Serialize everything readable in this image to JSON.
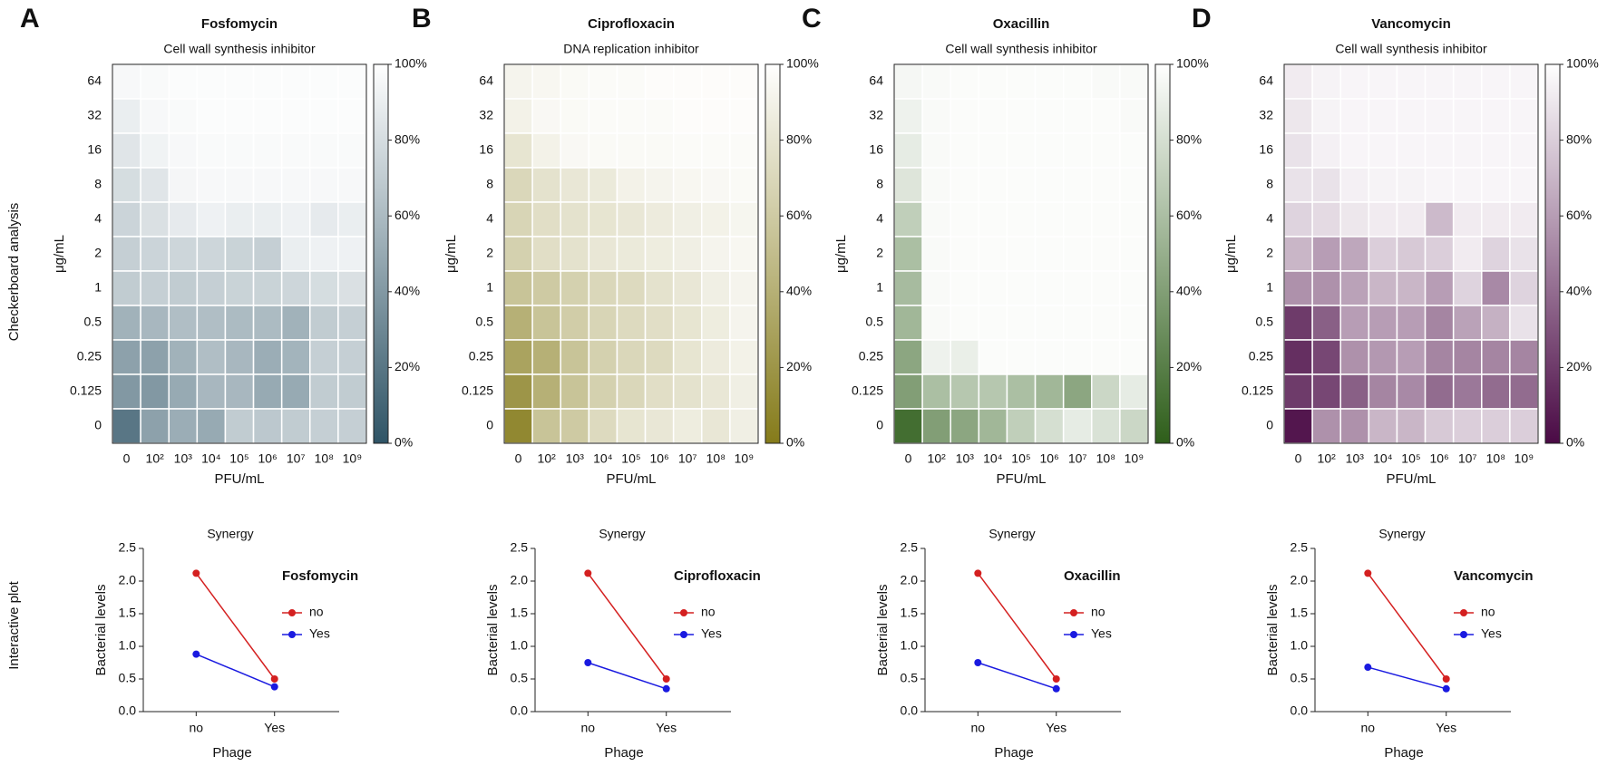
{
  "row_labels": [
    "Checkerboard analysis",
    "Interactive plot"
  ],
  "chart_data": [
    {
      "type": "heatmap",
      "panel": "A",
      "title": "Fosfomycin",
      "subtitle": "Cell wall synthesis inhibitor",
      "x_label": "PFU/mL",
      "y_label": "μg/mL",
      "x_categories": [
        "0",
        "10²",
        "10³",
        "10⁴",
        "10⁵",
        "10⁶",
        "10⁷",
        "10⁸",
        "10⁹"
      ],
      "y_categories": [
        "64",
        "32",
        "16",
        "8",
        "4",
        "2",
        "1",
        "0.5",
        "0.25",
        "0.125",
        "0"
      ],
      "values": [
        [
          96,
          97,
          98,
          98,
          98,
          98,
          98,
          98,
          98
        ],
        [
          90,
          96,
          97,
          98,
          98,
          98,
          98,
          98,
          98
        ],
        [
          85,
          93,
          96,
          97,
          97,
          97,
          97,
          97,
          97
        ],
        [
          80,
          85,
          95,
          96,
          96,
          96,
          96,
          96,
          96
        ],
        [
          75,
          82,
          88,
          92,
          90,
          90,
          92,
          88,
          90
        ],
        [
          72,
          75,
          76,
          76,
          74,
          72,
          90,
          92,
          92
        ],
        [
          70,
          72,
          70,
          72,
          74,
          74,
          76,
          80,
          82
        ],
        [
          55,
          58,
          62,
          62,
          60,
          60,
          55,
          70,
          72
        ],
        [
          45,
          45,
          55,
          62,
          58,
          52,
          56,
          72,
          72
        ],
        [
          40,
          40,
          50,
          58,
          58,
          50,
          50,
          70,
          70
        ],
        [
          20,
          45,
          52,
          50,
          70,
          68,
          70,
          72,
          72
        ]
      ],
      "color_low": "#2f5466",
      "color_high": "#ffffff",
      "zlim": [
        0,
        100
      ],
      "zticks": [
        {
          "value": 0,
          "label": "0%"
        },
        {
          "value": 20,
          "label": "20%"
        },
        {
          "value": 40,
          "label": "40%"
        },
        {
          "value": 60,
          "label": "60%"
        },
        {
          "value": 80,
          "label": "80%"
        },
        {
          "value": 100,
          "label": "100%"
        }
      ]
    },
    {
      "type": "heatmap",
      "panel": "B",
      "title": "Ciprofloxacin",
      "subtitle": "DNA replication inhibitor",
      "x_label": "PFU/mL",
      "y_label": "μg/mL",
      "x_categories": [
        "0",
        "10²",
        "10³",
        "10⁴",
        "10⁵",
        "10⁶",
        "10⁷",
        "10⁸",
        "10⁹"
      ],
      "y_categories": [
        "64",
        "32",
        "16",
        "8",
        "4",
        "2",
        "1",
        "0.5",
        "0.25",
        "0.125",
        "0"
      ],
      "values": [
        [
          92,
          94,
          96,
          97,
          97,
          98,
          98,
          98,
          98
        ],
        [
          90,
          95,
          96,
          97,
          97,
          97,
          98,
          98,
          98
        ],
        [
          80,
          90,
          95,
          96,
          96,
          96,
          97,
          97,
          97
        ],
        [
          70,
          78,
          82,
          84,
          90,
          92,
          94,
          95,
          96
        ],
        [
          68,
          75,
          78,
          80,
          82,
          85,
          88,
          90,
          93
        ],
        [
          65,
          75,
          78,
          82,
          84,
          86,
          88,
          92,
          94
        ],
        [
          55,
          60,
          65,
          70,
          72,
          78,
          82,
          88,
          92
        ],
        [
          40,
          55,
          62,
          68,
          72,
          75,
          80,
          86,
          92
        ],
        [
          30,
          40,
          55,
          65,
          70,
          72,
          80,
          85,
          90
        ],
        [
          20,
          40,
          55,
          65,
          70,
          75,
          78,
          82,
          88
        ],
        [
          10,
          55,
          60,
          72,
          80,
          82,
          86,
          82,
          88
        ]
      ],
      "color_low": "#857b1a",
      "color_high": "#ffffff",
      "zlim": [
        0,
        100
      ],
      "zticks": [
        {
          "value": 0,
          "label": "0%"
        },
        {
          "value": 20,
          "label": "20%"
        },
        {
          "value": 40,
          "label": "40%"
        },
        {
          "value": 60,
          "label": "60%"
        },
        {
          "value": 80,
          "label": "80%"
        },
        {
          "value": 100,
          "label": "100%"
        }
      ]
    },
    {
      "type": "heatmap",
      "panel": "C",
      "title": "Oxacillin",
      "subtitle": "Cell wall synthesis inhibitor",
      "x_label": "PFU/mL",
      "y_label": "μg/mL",
      "x_categories": [
        "0",
        "10²",
        "10³",
        "10⁴",
        "10⁵",
        "10⁶",
        "10⁷",
        "10⁸",
        "10⁹"
      ],
      "y_categories": [
        "64",
        "32",
        "16",
        "8",
        "4",
        "2",
        "1",
        "0.5",
        "0.25",
        "0.125",
        "0"
      ],
      "values": [
        [
          95,
          97,
          98,
          98,
          98,
          98,
          98,
          97,
          97
        ],
        [
          92,
          97,
          98,
          98,
          98,
          98,
          98,
          98,
          97
        ],
        [
          88,
          97,
          98,
          98,
          98,
          98,
          98,
          98,
          98
        ],
        [
          84,
          97,
          98,
          98,
          98,
          98,
          98,
          98,
          98
        ],
        [
          70,
          97,
          98,
          98,
          98,
          98,
          98,
          98,
          98
        ],
        [
          60,
          97,
          98,
          98,
          98,
          98,
          98,
          98,
          98
        ],
        [
          58,
          97,
          98,
          98,
          98,
          98,
          98,
          98,
          98
        ],
        [
          55,
          97,
          98,
          98,
          98,
          98,
          98,
          98,
          98
        ],
        [
          45,
          92,
          90,
          98,
          98,
          98,
          98,
          98,
          98
        ],
        [
          40,
          60,
          65,
          65,
          60,
          55,
          45,
          75,
          88
        ],
        [
          10,
          40,
          45,
          55,
          70,
          80,
          88,
          82,
          75
        ]
      ],
      "color_low": "#2e5e1a",
      "color_high": "#ffffff",
      "zlim": [
        0,
        100
      ],
      "zticks": [
        {
          "value": 0,
          "label": "0%"
        },
        {
          "value": 20,
          "label": "20%"
        },
        {
          "value": 40,
          "label": "40%"
        },
        {
          "value": 60,
          "label": "60%"
        },
        {
          "value": 80,
          "label": "80%"
        },
        {
          "value": 100,
          "label": "100%"
        }
      ]
    },
    {
      "type": "heatmap",
      "panel": "D",
      "title": "Vancomycin",
      "subtitle": "Cell wall synthesis inhibitor",
      "x_label": "PFU/mL",
      "y_label": "μg/mL",
      "x_categories": [
        "0",
        "10²",
        "10³",
        "10⁴",
        "10⁵",
        "10⁶",
        "10⁷",
        "10⁸",
        "10⁹"
      ],
      "y_categories": [
        "64",
        "32",
        "16",
        "8",
        "4",
        "2",
        "1",
        "0.5",
        "0.25",
        "0.125",
        "0"
      ],
      "values": [
        [
          92,
          95,
          96,
          96,
          96,
          96,
          96,
          96,
          96
        ],
        [
          90,
          95,
          96,
          96,
          96,
          96,
          96,
          96,
          96
        ],
        [
          88,
          94,
          96,
          96,
          96,
          96,
          96,
          96,
          96
        ],
        [
          88,
          88,
          94,
          95,
          95,
          96,
          96,
          96,
          96
        ],
        [
          82,
          85,
          90,
          92,
          92,
          72,
          92,
          92,
          92
        ],
        [
          70,
          60,
          64,
          80,
          78,
          80,
          92,
          82,
          88
        ],
        [
          55,
          55,
          62,
          70,
          70,
          60,
          82,
          52,
          82
        ],
        [
          20,
          35,
          60,
          60,
          60,
          50,
          62,
          68,
          88
        ],
        [
          15,
          25,
          55,
          58,
          60,
          50,
          50,
          50,
          50
        ],
        [
          20,
          25,
          35,
          50,
          52,
          40,
          45,
          40,
          40
        ],
        [
          5,
          55,
          55,
          70,
          70,
          78,
          80,
          80,
          80
        ]
      ],
      "color_low": "#4a0a45",
      "color_high": "#ffffff",
      "zlim": [
        0,
        100
      ],
      "zticks": [
        {
          "value": 0,
          "label": "0%"
        },
        {
          "value": 20,
          "label": "20%"
        },
        {
          "value": 40,
          "label": "40%"
        },
        {
          "value": 60,
          "label": "60%"
        },
        {
          "value": 80,
          "label": "80%"
        },
        {
          "value": 100,
          "label": "100%"
        }
      ]
    },
    {
      "type": "line",
      "title": "Synergy",
      "legend_title": "Fosfomycin",
      "categories": [
        "no",
        "Yes"
      ],
      "x_label": "Phage",
      "y_label": "Bacterial levels",
      "ylim": [
        0,
        2.5
      ],
      "yticks": [
        {
          "value": 0,
          "label": "0.0"
        },
        0.5,
        {
          "value": 1,
          "label": "1.0"
        },
        1.5,
        {
          "value": 2,
          "label": "2.0"
        },
        2.5
      ],
      "series": [
        {
          "name": "no",
          "color": "#d42020",
          "values": [
            2.12,
            0.5
          ]
        },
        {
          "name": "Yes",
          "color": "#1a1ae0",
          "values": [
            0.88,
            0.38
          ]
        }
      ]
    },
    {
      "type": "line",
      "title": "Synergy",
      "legend_title": "Ciprofloxacin",
      "categories": [
        "no",
        "Yes"
      ],
      "x_label": "Phage",
      "y_label": "Bacterial levels",
      "ylim": [
        0,
        2.5
      ],
      "yticks": [
        {
          "value": 0,
          "label": "0.0"
        },
        0.5,
        {
          "value": 1,
          "label": "1.0"
        },
        1.5,
        {
          "value": 2,
          "label": "2.0"
        },
        2.5
      ],
      "series": [
        {
          "name": "no",
          "color": "#d42020",
          "values": [
            2.12,
            0.5
          ]
        },
        {
          "name": "Yes",
          "color": "#1a1ae0",
          "values": [
            0.75,
            0.35
          ]
        }
      ]
    },
    {
      "type": "line",
      "title": "Synergy",
      "legend_title": "Oxacillin",
      "categories": [
        "no",
        "Yes"
      ],
      "x_label": "Phage",
      "y_label": "Bacterial levels",
      "ylim": [
        0,
        2.5
      ],
      "yticks": [
        {
          "value": 0,
          "label": "0.0"
        },
        0.5,
        {
          "value": 1,
          "label": "1.0"
        },
        1.5,
        {
          "value": 2,
          "label": "2.0"
        },
        2.5
      ],
      "series": [
        {
          "name": "no",
          "color": "#d42020",
          "values": [
            2.12,
            0.5
          ]
        },
        {
          "name": "Yes",
          "color": "#1a1ae0",
          "values": [
            0.75,
            0.35
          ]
        }
      ]
    },
    {
      "type": "line",
      "title": "Synergy",
      "legend_title": "Vancomycin",
      "categories": [
        "no",
        "Yes"
      ],
      "x_label": "Phage",
      "y_label": "Bacterial levels",
      "ylim": [
        0,
        2.5
      ],
      "yticks": [
        {
          "value": 0,
          "label": "0.0"
        },
        0.5,
        {
          "value": 1,
          "label": "1.0"
        },
        1.5,
        {
          "value": 2,
          "label": "2.0"
        },
        2.5
      ],
      "series": [
        {
          "name": "no",
          "color": "#d42020",
          "values": [
            2.12,
            0.5
          ]
        },
        {
          "name": "Yes",
          "color": "#1a1ae0",
          "values": [
            0.68,
            0.35
          ]
        }
      ]
    }
  ]
}
